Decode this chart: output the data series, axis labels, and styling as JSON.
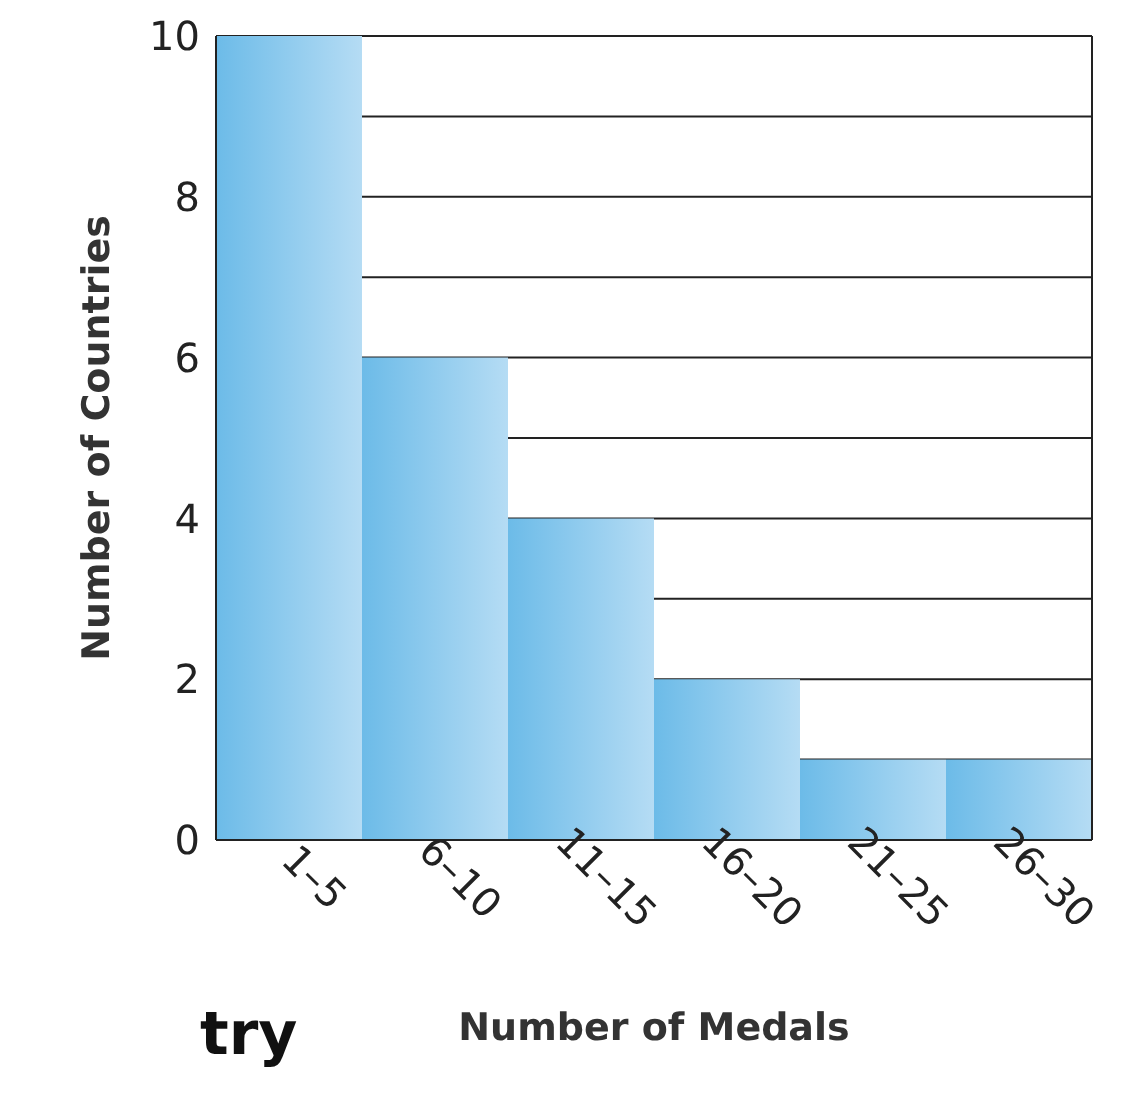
{
  "chart_data": {
    "type": "bar",
    "xlabel": "Number of Medals",
    "ylabel": "Number of Countries",
    "categories": [
      "1–5",
      "6–10",
      "11–15",
      "16–20",
      "21–25",
      "26–30"
    ],
    "values": [
      10,
      6,
      4,
      2,
      1,
      1
    ],
    "color": "#6cbbe8",
    "ylim": [
      0,
      10
    ],
    "yticks": [
      0,
      {
        "value": 1,
        "label": null
      },
      2,
      {
        "value": 3,
        "label": null
      },
      4,
      {
        "value": 5,
        "label": null
      },
      6,
      {
        "value": 7,
        "label": null
      },
      8,
      {
        "value": 9,
        "label": null
      },
      10
    ],
    "grid": "y",
    "annotations": [
      "try"
    ]
  }
}
